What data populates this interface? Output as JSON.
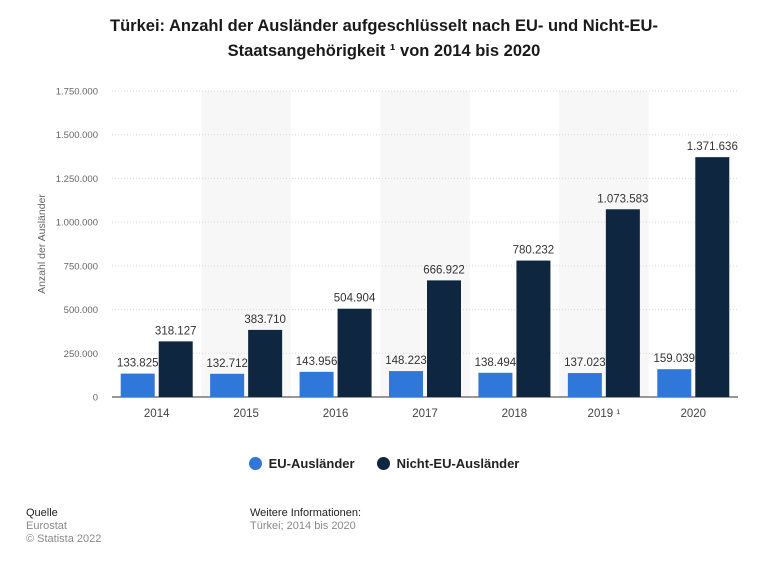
{
  "title_line1": "Türkei: Anzahl der Ausländer aufgeschlüsselt nach EU- und Nicht-EU-",
  "title_line2": "Staatsangehörigkeit ¹ von 2014 bis 2020",
  "legend": [
    {
      "label": "EU-Ausländer",
      "color": "#2f77d8"
    },
    {
      "label": "Nicht-EU-Ausländer",
      "color": "#0f2640"
    }
  ],
  "footer": {
    "source_heading": "Quelle",
    "source_lines": [
      "Eurostat",
      "© Statista 2022"
    ],
    "info_heading": "Weitere Informationen:",
    "info_lines": [
      "Türkei; 2014 bis 2020"
    ]
  },
  "chart_data": {
    "type": "bar",
    "title": "Türkei: Anzahl der Ausländer aufgeschlüsselt nach EU- und Nicht-EU-Staatsangehörigkeit ¹ von 2014 bis 2020",
    "xlabel": "",
    "ylabel": "Anzahl der Ausländer",
    "ylim": [
      0,
      1750000
    ],
    "yticks": [
      0,
      250000,
      500000,
      750000,
      1000000,
      1250000,
      1500000,
      1750000
    ],
    "ytick_labels": [
      "0",
      "250.000",
      "500.000",
      "750.000",
      "1.000.000",
      "1.250.000",
      "1.500.000",
      "1.750.000"
    ],
    "categories": [
      "2014",
      "2015",
      "2016",
      "2017",
      "2018",
      "2019 ¹",
      "2020"
    ],
    "series": [
      {
        "name": "EU-Ausländer",
        "color": "#2f77d8",
        "values": [
          133825,
          132712,
          143956,
          148223,
          138494,
          137023,
          159039
        ],
        "labels": [
          "133.825",
          "132.712",
          "143.956",
          "148.223",
          "138.494",
          "137.023",
          "159.039"
        ]
      },
      {
        "name": "Nicht-EU-Ausländer",
        "color": "#0f2640",
        "values": [
          318127,
          383710,
          504904,
          666922,
          780232,
          1073583,
          1371636
        ],
        "labels": [
          "318.127",
          "383.710",
          "504.904",
          "666.922",
          "780.232",
          "1.073.583",
          "1.371.636"
        ]
      }
    ],
    "grid": true,
    "legend_position": "bottom"
  }
}
